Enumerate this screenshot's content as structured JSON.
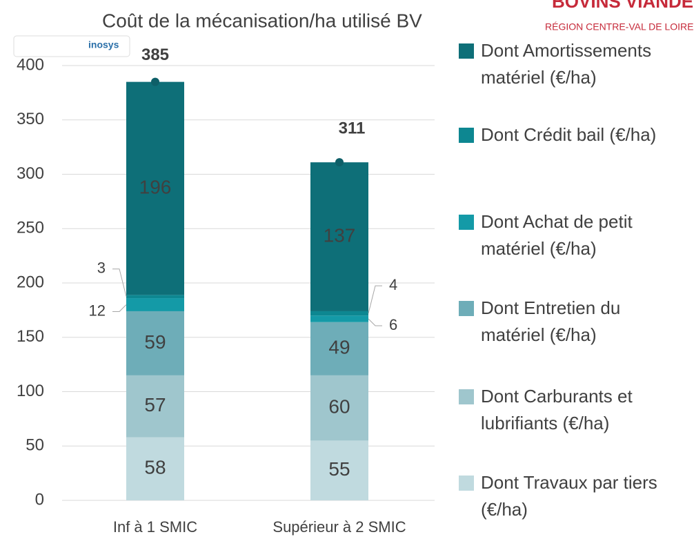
{
  "chart_data": {
    "type": "stacked_bar",
    "title": "Coût de la mécanisation/ha utilisé BV",
    "brand": "BOVINS VIANDE",
    "region": "RÉGION CENTRE-VAL DE LOIRE",
    "logo": "inosys",
    "categories": [
      "Inf à 1 SMIC",
      "Supérieur à 2 SMIC"
    ],
    "series": [
      {
        "name": "Dont Travaux par tiers (€/ha)",
        "color": "#c0dadf",
        "values": [
          58,
          55
        ]
      },
      {
        "name": "Dont Carburants et lubrifiants (€/ha)",
        "color": "#9fc6cd",
        "values": [
          57,
          60
        ]
      },
      {
        "name": "Dont Entretien du matériel (€/ha)",
        "color": "#6eadb8",
        "values": [
          59,
          49
        ]
      },
      {
        "name": "Dont Achat de petit matériel (€/ha)",
        "color": "#149aa7",
        "values": [
          12,
          6
        ]
      },
      {
        "name": "Dont  Crédit bail (€/ha)",
        "color": "#0d8791",
        "values": [
          3,
          4
        ]
      },
      {
        "name": "Dont Amortissements matériel (€/ha)",
        "color": "#0e6f78",
        "values": [
          196,
          137
        ]
      }
    ],
    "totals": [
      385,
      311
    ],
    "ylim": [
      0,
      400
    ],
    "yticks": [
      0,
      50,
      100,
      150,
      200,
      250,
      300,
      350,
      400
    ],
    "grid": true
  }
}
